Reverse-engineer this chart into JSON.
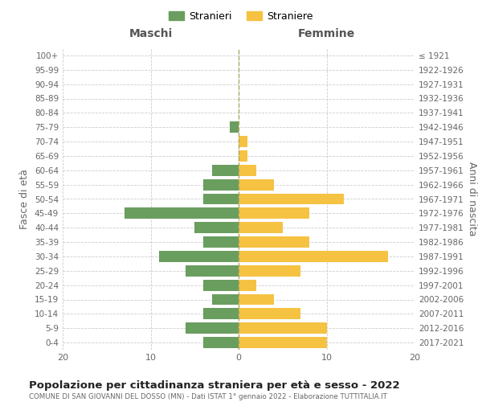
{
  "age_groups": [
    "0-4",
    "5-9",
    "10-14",
    "15-19",
    "20-24",
    "25-29",
    "30-34",
    "35-39",
    "40-44",
    "45-49",
    "50-54",
    "55-59",
    "60-64",
    "65-69",
    "70-74",
    "75-79",
    "80-84",
    "85-89",
    "90-94",
    "95-99",
    "100+"
  ],
  "birth_years": [
    "2017-2021",
    "2012-2016",
    "2007-2011",
    "2002-2006",
    "1997-2001",
    "1992-1996",
    "1987-1991",
    "1982-1986",
    "1977-1981",
    "1972-1976",
    "1967-1971",
    "1962-1966",
    "1957-1961",
    "1952-1956",
    "1947-1951",
    "1942-1946",
    "1937-1941",
    "1932-1936",
    "1927-1931",
    "1922-1926",
    "≤ 1921"
  ],
  "maschi": [
    4,
    6,
    4,
    3,
    4,
    6,
    9,
    4,
    5,
    13,
    4,
    4,
    3,
    0,
    0,
    1,
    0,
    0,
    0,
    0,
    0
  ],
  "femmine": [
    10,
    10,
    7,
    4,
    2,
    7,
    17,
    8,
    5,
    8,
    12,
    4,
    2,
    1,
    1,
    0,
    0,
    0,
    0,
    0,
    0
  ],
  "maschi_color": "#6a9e5f",
  "femmine_color": "#f5c242",
  "background_color": "#ffffff",
  "grid_color": "#cccccc",
  "title": "Popolazione per cittadinanza straniera per età e sesso - 2022",
  "subtitle": "COMUNE DI SAN GIOVANNI DEL DOSSO (MN) - Dati ISTAT 1° gennaio 2022 - Elaborazione TUTTITALIA.IT",
  "xlabel_left": "Maschi",
  "xlabel_right": "Femmine",
  "ylabel_left": "Fasce di età",
  "ylabel_right": "Anni di nascita",
  "legend_maschi": "Stranieri",
  "legend_femmine": "Straniere",
  "xlim": 20
}
